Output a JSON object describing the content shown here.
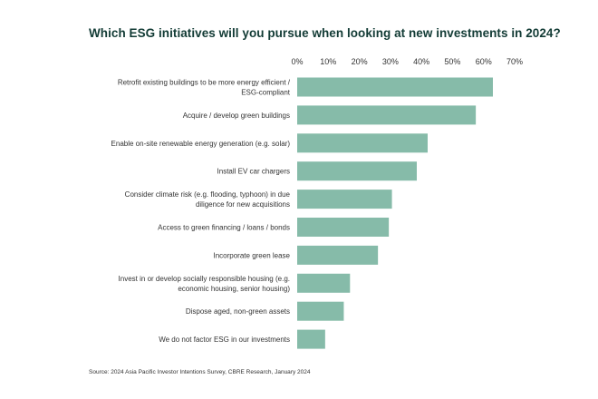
{
  "colors": {
    "bar": "#86bba9",
    "title": "#123b35",
    "text": "#333333"
  },
  "chart_data": {
    "type": "bar",
    "orientation": "horizontal",
    "title": "Which ESG initiatives will you pursue when looking at new investments in 2024?",
    "source": "Source: 2024 Asia Pacific Investor Intentions Survey, CBRE Research, January 2024",
    "xlim": [
      0,
      70
    ],
    "x_ticks": [
      "0%",
      "10%",
      "20%",
      "30%",
      "40%",
      "50%",
      "60%",
      "70%"
    ],
    "tick_values": [
      0,
      10,
      20,
      30,
      40,
      50,
      60,
      70
    ],
    "axis_position": "top",
    "grid": false,
    "unit": "%",
    "categories": [
      [
        "Retrofit existing buildings to be more energy efficient /",
        "ESG-compliant"
      ],
      [
        "Acquire / develop green buildings"
      ],
      [
        "Enable on-site renewable energy generation (e.g. solar)"
      ],
      [
        "Install EV car chargers"
      ],
      [
        "Consider climate risk (e.g. flooding, typhoon) in due",
        "diligence for new acquisitions"
      ],
      [
        "Access to green financing / loans / bonds"
      ],
      [
        "Incorporate green lease"
      ],
      [
        "Invest in or develop socially responsible housing (e.g.",
        "economic housing, senior housing)"
      ],
      [
        "Dispose aged, non-green assets"
      ],
      [
        "We do not factor ESG in our investments"
      ]
    ],
    "values": [
      63,
      57.5,
      42,
      38.5,
      30.5,
      29.5,
      26,
      17,
      15,
      9
    ]
  }
}
